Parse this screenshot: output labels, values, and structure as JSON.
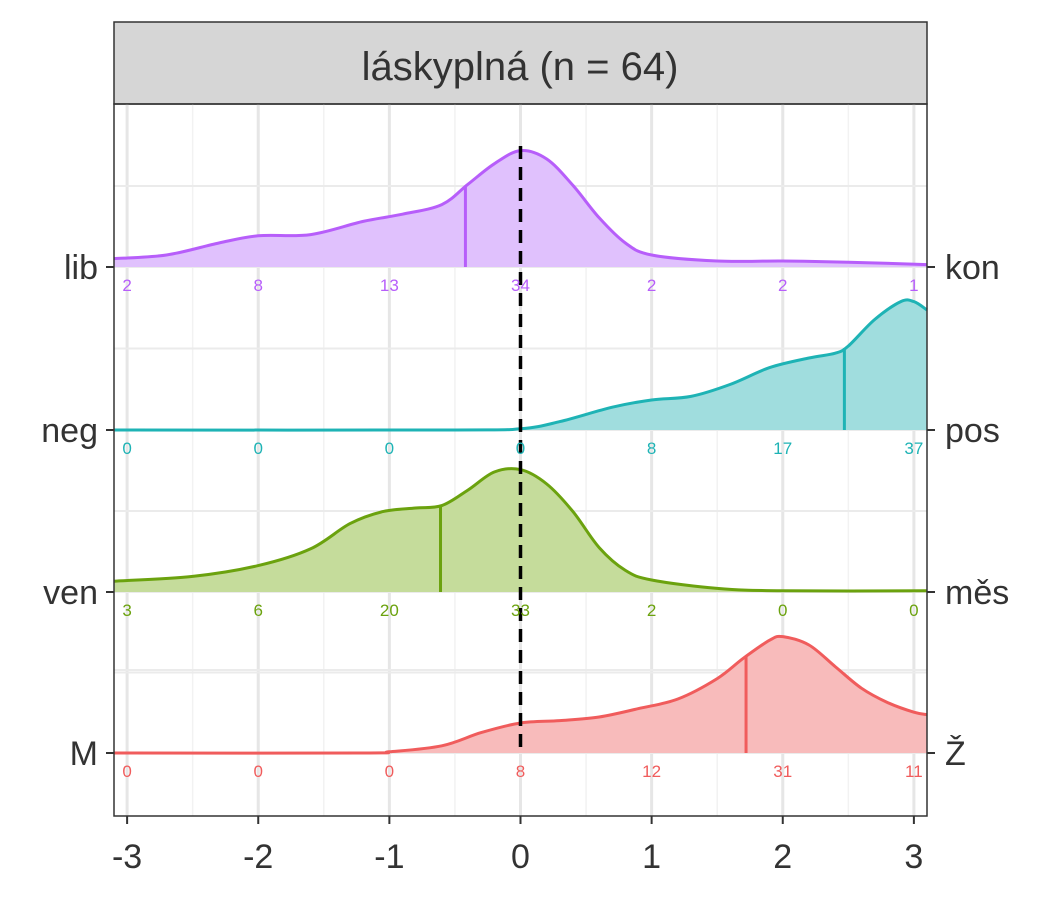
{
  "chart_data": {
    "type": "density-ridgeline",
    "title": "láskyplná (n = 64)",
    "xlim": [
      -3.1,
      3.1
    ],
    "x_ticks": [
      -3,
      -2,
      -1,
      0,
      1,
      2,
      3
    ],
    "x_tick_labels": [
      "-3",
      "-2",
      "-1",
      "0",
      "1",
      "2",
      "3"
    ],
    "bins_x": [
      -3,
      -2,
      -1,
      0,
      1,
      2,
      3
    ],
    "grid": true,
    "reference_line_x": 0,
    "series": [
      {
        "left_label": "lib",
        "right_label": "kon",
        "color": "#B75EFA",
        "fill": "#E0C1FD",
        "counts": [
          2,
          8,
          13,
          34,
          2,
          2,
          1
        ],
        "mean": -0.42,
        "density": [
          [
            -3.1,
            0.07
          ],
          [
            -2.7,
            0.1
          ],
          [
            -2.3,
            0.2
          ],
          [
            -2,
            0.26
          ],
          [
            -1.6,
            0.27
          ],
          [
            -1.2,
            0.38
          ],
          [
            -0.9,
            0.44
          ],
          [
            -0.6,
            0.52
          ],
          [
            -0.4,
            0.69
          ],
          [
            -0.2,
            0.86
          ],
          [
            0,
            0.97
          ],
          [
            0.2,
            0.9
          ],
          [
            0.4,
            0.68
          ],
          [
            0.6,
            0.41
          ],
          [
            0.8,
            0.2
          ],
          [
            1,
            0.1
          ],
          [
            1.5,
            0.05
          ],
          [
            2,
            0.05
          ],
          [
            2.5,
            0.04
          ],
          [
            3.1,
            0.02
          ]
        ]
      },
      {
        "left_label": "neg",
        "right_label": "pos",
        "color": "#1EB3B5",
        "fill": "#A0DDDE",
        "counts": [
          0,
          0,
          0,
          0,
          8,
          17,
          37
        ],
        "mean": 2.47,
        "density": [
          [
            -3.1,
            0
          ],
          [
            -0.5,
            0
          ],
          [
            0,
            0.01
          ],
          [
            0.3,
            0.07
          ],
          [
            0.7,
            0.19
          ],
          [
            1,
            0.25
          ],
          [
            1.3,
            0.28
          ],
          [
            1.6,
            0.38
          ],
          [
            1.9,
            0.52
          ],
          [
            2.2,
            0.6
          ],
          [
            2.4,
            0.64
          ],
          [
            2.5,
            0.7
          ],
          [
            2.7,
            0.92
          ],
          [
            2.9,
            1.07
          ],
          [
            3,
            1.07
          ],
          [
            3.1,
            1.0
          ]
        ]
      },
      {
        "left_label": "ven",
        "right_label": "měs",
        "color": "#6BA20E",
        "fill": "#C5DC9B",
        "counts": [
          3,
          6,
          20,
          33,
          2,
          0,
          0
        ],
        "mean": -0.61,
        "density": [
          [
            -3.1,
            0.09
          ],
          [
            -2.5,
            0.13
          ],
          [
            -2,
            0.22
          ],
          [
            -1.6,
            0.36
          ],
          [
            -1.3,
            0.57
          ],
          [
            -1.05,
            0.67
          ],
          [
            -0.8,
            0.7
          ],
          [
            -0.6,
            0.72
          ],
          [
            -0.4,
            0.85
          ],
          [
            -0.2,
            1.0
          ],
          [
            0,
            1.02
          ],
          [
            0.2,
            0.9
          ],
          [
            0.4,
            0.67
          ],
          [
            0.6,
            0.37
          ],
          [
            0.8,
            0.18
          ],
          [
            1,
            0.1
          ],
          [
            1.5,
            0.03
          ],
          [
            2,
            0.01
          ],
          [
            3.1,
            0.01
          ]
        ]
      },
      {
        "left_label": "M",
        "right_label": "Ž",
        "color": "#F05C5C",
        "fill": "#F8BBBB",
        "counts": [
          0,
          0,
          0,
          8,
          12,
          31,
          11
        ],
        "mean": 1.72,
        "density": [
          [
            -3.1,
            0
          ],
          [
            -1.2,
            0
          ],
          [
            -1,
            0.01
          ],
          [
            -0.6,
            0.06
          ],
          [
            -0.3,
            0.17
          ],
          [
            0,
            0.25
          ],
          [
            0.3,
            0.27
          ],
          [
            0.6,
            0.3
          ],
          [
            0.9,
            0.37
          ],
          [
            1.2,
            0.45
          ],
          [
            1.5,
            0.62
          ],
          [
            1.7,
            0.79
          ],
          [
            1.9,
            0.94
          ],
          [
            2,
            0.97
          ],
          [
            2.2,
            0.9
          ],
          [
            2.4,
            0.72
          ],
          [
            2.6,
            0.54
          ],
          [
            2.8,
            0.42
          ],
          [
            3,
            0.34
          ],
          [
            3.1,
            0.32
          ]
        ]
      }
    ]
  }
}
